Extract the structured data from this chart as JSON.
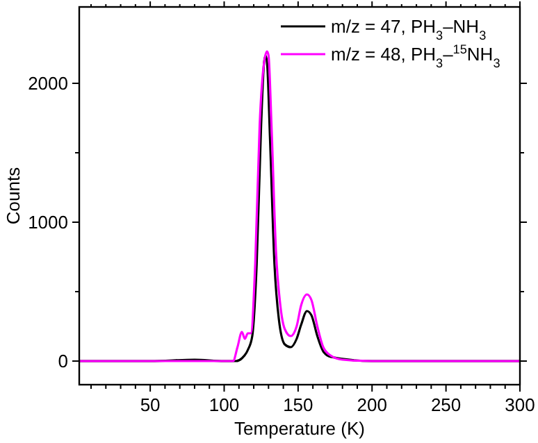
{
  "chart_data": {
    "type": "line",
    "xlabel": "Temperature (K)",
    "ylabel": "Counts",
    "xlim": [
      2,
      300
    ],
    "ylim": [
      -170,
      2550
    ],
    "xticks": [
      {
        "value": 10,
        "label": null
      },
      {
        "value": 20,
        "label": null
      },
      {
        "value": 30,
        "label": null
      },
      {
        "value": 40,
        "label": null
      },
      50,
      {
        "value": 60,
        "label": null
      },
      {
        "value": 70,
        "label": null
      },
      {
        "value": 80,
        "label": null
      },
      {
        "value": 90,
        "label": null
      },
      100,
      {
        "value": 110,
        "label": null
      },
      {
        "value": 120,
        "label": null
      },
      {
        "value": 130,
        "label": null
      },
      {
        "value": 140,
        "label": null
      },
      150,
      {
        "value": 160,
        "label": null
      },
      {
        "value": 170,
        "label": null
      },
      {
        "value": 180,
        "label": null
      },
      {
        "value": 190,
        "label": null
      },
      200,
      {
        "value": 210,
        "label": null
      },
      {
        "value": 220,
        "label": null
      },
      {
        "value": 230,
        "label": null
      },
      {
        "value": 240,
        "label": null
      },
      250,
      {
        "value": 260,
        "label": null
      },
      {
        "value": 270,
        "label": null
      },
      {
        "value": 280,
        "label": null
      },
      {
        "value": 290,
        "label": null
      },
      300
    ],
    "yticks": [
      0,
      {
        "value": 500,
        "label": null
      },
      1000,
      {
        "value": 1500,
        "label": null
      },
      2000
    ],
    "legend": "top right",
    "grid": false,
    "series": [
      {
        "name": "m/z = 47, PH$_{3}$–NH$_{3}$",
        "color": "#000000",
        "x": [
          2,
          50,
          80,
          100,
          108,
          112,
          116,
          119,
          122,
          125,
          127,
          128,
          129,
          131,
          134,
          137,
          141,
          145,
          149,
          152,
          156,
          159,
          163,
          167,
          172,
          200,
          250,
          300
        ],
        "values": [
          0,
          0,
          10,
          0,
          0,
          20,
          80,
          180,
          700,
          1700,
          2150,
          2200,
          2150,
          1600,
          700,
          300,
          120,
          100,
          160,
          260,
          360,
          330,
          180,
          70,
          30,
          0,
          0,
          0
        ]
      },
      {
        "name": "m/z = 48, PH$_{3}$–$^{15}$NH$_{3}$",
        "color": "#ff00ff",
        "x": [
          2,
          100,
          106,
          109,
          112,
          114,
          116,
          118,
          121,
          124,
          127,
          129,
          130,
          132,
          135,
          138,
          141,
          145,
          149,
          152,
          156,
          159,
          163,
          167,
          172,
          180,
          200,
          300
        ],
        "values": [
          0,
          0,
          0,
          100,
          210,
          160,
          200,
          200,
          700,
          1700,
          2150,
          2230,
          2200,
          1700,
          800,
          400,
          230,
          180,
          250,
          400,
          480,
          440,
          250,
          100,
          40,
          10,
          0,
          0
        ]
      }
    ]
  }
}
